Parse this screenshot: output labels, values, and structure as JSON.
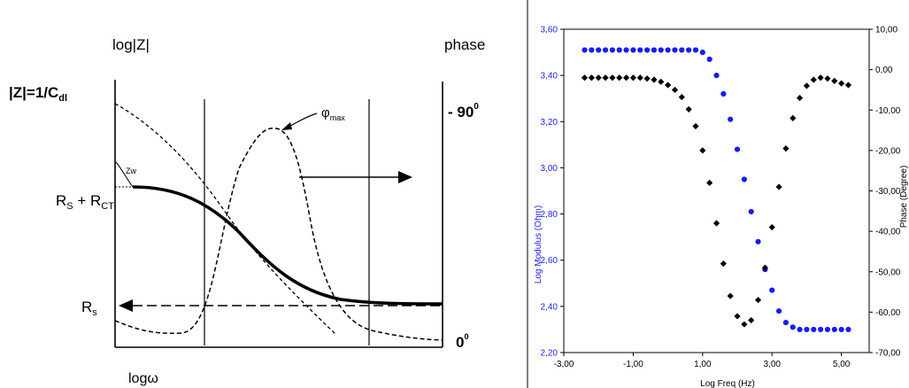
{
  "chart_data": [
    {
      "type": "line",
      "schematic": true,
      "labels": {
        "y_left_title": "log|Z|",
        "y_right_title": "phase",
        "z_eq": "|Z|=1/C",
        "z_eq_sub": "dl",
        "rs_rct_main": "R",
        "rs_rct_sub1": "S",
        "rs_rct_plus": " + R",
        "rs_rct_sub2": "CT",
        "rs_main": "R",
        "rs_sub": "s",
        "phase_top": "- 90",
        "phase_top_sup": "0",
        "phase_bottom": "0",
        "phase_bottom_sup": "0",
        "x_title": "logω",
        "phi_max_main": "φ",
        "phi_max_sub": "max",
        "zw": "Zw"
      }
    },
    {
      "type": "scatter",
      "x_label": "Log Freq (Hz)",
      "y_label": "Log Modulus (Ohm)",
      "y2_label": "Phase (Degree)",
      "x_ticks": [
        "-3,00",
        "-1,00",
        "1,00",
        "3,00",
        "5,00"
      ],
      "y_ticks": [
        "3,60",
        "3,40",
        "3,20",
        "3,00",
        "2,80",
        "2,60",
        "2,40",
        "2,20"
      ],
      "y2_ticks": [
        "10,00",
        "0,00",
        "-10,00",
        "-20,00",
        "-30,00",
        "-40,00",
        "-50,00",
        "-60,00",
        "-70,00"
      ],
      "xlim": [
        -3,
        5.8
      ],
      "ylim": [
        2.2,
        3.6
      ],
      "y2lim": [
        -70,
        10
      ],
      "series": [
        {
          "name": "",
          "axis": "left",
          "color": "#1a1aff",
          "marker": "circle",
          "x": [
            -2.4,
            -2.2,
            -2.0,
            -1.8,
            -1.6,
            -1.4,
            -1.2,
            -1.0,
            -0.8,
            -0.6,
            -0.4,
            -0.2,
            0.0,
            0.2,
            0.4,
            0.6,
            0.8,
            1.0,
            1.2,
            1.4,
            1.6,
            1.8,
            2.0,
            2.2,
            2.4,
            2.6,
            2.8,
            3.0,
            3.2,
            3.4,
            3.6,
            3.8,
            4.0,
            4.2,
            4.4,
            4.6,
            4.8,
            5.0,
            5.2
          ],
          "y": [
            3.51,
            3.51,
            3.51,
            3.51,
            3.51,
            3.51,
            3.51,
            3.51,
            3.51,
            3.51,
            3.51,
            3.51,
            3.51,
            3.51,
            3.51,
            3.51,
            3.51,
            3.5,
            3.47,
            3.4,
            3.32,
            3.21,
            3.08,
            2.95,
            2.81,
            2.68,
            2.56,
            2.47,
            2.38,
            2.33,
            2.31,
            2.3,
            2.3,
            2.3,
            2.3,
            2.3,
            2.3,
            2.3,
            2.3
          ]
        },
        {
          "name": "",
          "axis": "right",
          "color": "#000000",
          "marker": "diamond",
          "x": [
            -2.4,
            -2.2,
            -2.0,
            -1.8,
            -1.6,
            -1.4,
            -1.2,
            -1.0,
            -0.8,
            -0.6,
            -0.4,
            -0.2,
            0.0,
            0.2,
            0.4,
            0.6,
            0.8,
            1.0,
            1.2,
            1.4,
            1.6,
            1.8,
            2.0,
            2.2,
            2.4,
            2.6,
            2.8,
            3.0,
            3.2,
            3.4,
            3.6,
            3.8,
            4.0,
            4.2,
            4.4,
            4.6,
            4.8,
            5.0,
            5.2
          ],
          "y": [
            -2.0,
            -2.0,
            -2.0,
            -2.0,
            -2.0,
            -2.0,
            -2.0,
            -2.0,
            -2.0,
            -2.2,
            -2.5,
            -3.0,
            -3.8,
            -5.0,
            -6.8,
            -9.8,
            -14.0,
            -20.0,
            -28.0,
            -38.0,
            -48.0,
            -56.0,
            -61.0,
            -63.0,
            -62.0,
            -57.0,
            -49.0,
            -39.0,
            -29.0,
            -19.5,
            -12.0,
            -7.0,
            -4.0,
            -2.5,
            -2.0,
            -2.2,
            -2.8,
            -3.4,
            -3.8
          ]
        }
      ]
    }
  ]
}
